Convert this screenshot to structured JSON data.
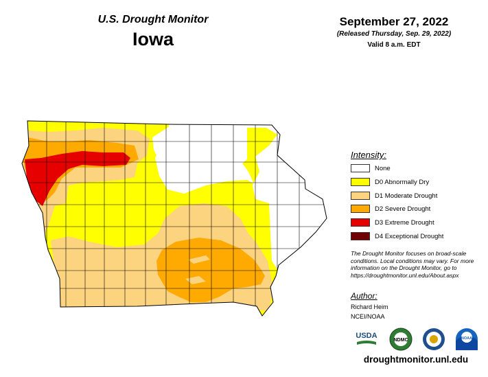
{
  "header": {
    "title": "U.S. Drought Monitor",
    "state": "Iowa",
    "date": "September 27, 2022",
    "released": "(Released Thursday, Sep. 29, 2022)",
    "valid": "Valid 8 a.m. EDT"
  },
  "legend": {
    "heading": "Intensity:",
    "items": [
      {
        "label": "None",
        "color": "#ffffff"
      },
      {
        "label": "D0 Abnormally Dry",
        "color": "#ffff00"
      },
      {
        "label": "D1 Moderate Drought",
        "color": "#fcd37f"
      },
      {
        "label": "D2 Severe Drought",
        "color": "#ffaa00"
      },
      {
        "label": "D3 Extreme Drought",
        "color": "#e60000"
      },
      {
        "label": "D4 Exceptional Drought",
        "color": "#730000"
      }
    ]
  },
  "note": "The Drought Monitor focuses on broad-scale conditions. Local conditions may vary. For more information on the Drought Monitor, go to https://droughtmonitor.unl.edu/About.aspx",
  "author": {
    "heading": "Author:",
    "name": "Richard Heim",
    "org": "NCEI/NOAA"
  },
  "logos": {
    "usda": "USDA",
    "ndmc": "NDMC",
    "noaa": "NOAA"
  },
  "url": "droughtmonitor.unl.edu"
}
